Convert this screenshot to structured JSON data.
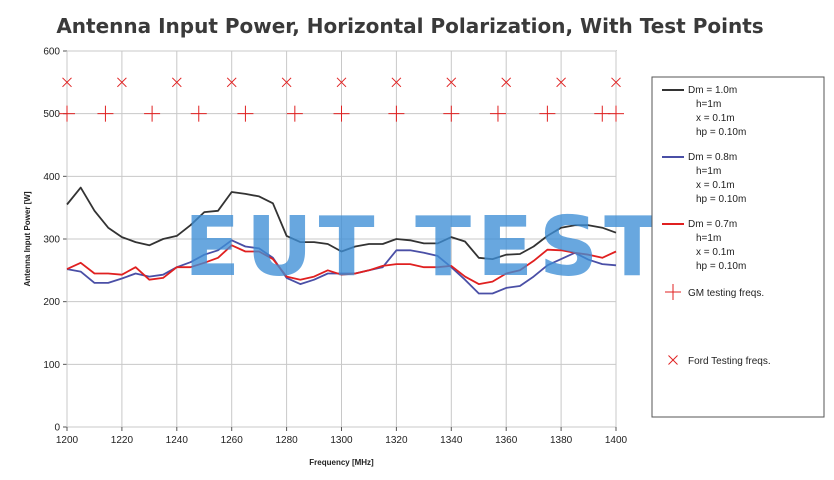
{
  "watermark": "EUT TEST",
  "chart_data": {
    "type": "line",
    "title": "Antenna Input Power, Horizontal Polarization, With Test Points",
    "xlabel": "Frequency [MHz]",
    "ylabel": "Antenna Input Power [W]",
    "xlim": [
      1200,
      1400
    ],
    "ylim": [
      0,
      600
    ],
    "x_ticks": [
      1200,
      1220,
      1240,
      1260,
      1280,
      1300,
      1320,
      1340,
      1360,
      1380,
      1400
    ],
    "y_ticks": [
      0,
      100,
      200,
      300,
      400,
      500,
      600
    ],
    "grid": true,
    "legend_position": "right",
    "series": [
      {
        "name": "Dm = 1.0m\nh=1m\nx = 0.1m\nhp = 0.10m",
        "color": "#333333",
        "points": [
          [
            1200,
            355
          ],
          [
            1205,
            382
          ],
          [
            1210,
            345
          ],
          [
            1215,
            318
          ],
          [
            1220,
            303
          ],
          [
            1225,
            295
          ],
          [
            1230,
            290
          ],
          [
            1235,
            300
          ],
          [
            1240,
            305
          ],
          [
            1245,
            322
          ],
          [
            1250,
            343
          ],
          [
            1255,
            345
          ],
          [
            1260,
            375
          ],
          [
            1265,
            372
          ],
          [
            1270,
            368
          ],
          [
            1275,
            357
          ],
          [
            1280,
            305
          ],
          [
            1285,
            295
          ],
          [
            1290,
            295
          ],
          [
            1295,
            292
          ],
          [
            1300,
            280
          ],
          [
            1305,
            288
          ],
          [
            1310,
            292
          ],
          [
            1315,
            292
          ],
          [
            1320,
            300
          ],
          [
            1325,
            298
          ],
          [
            1330,
            293
          ],
          [
            1335,
            293
          ],
          [
            1340,
            303
          ],
          [
            1345,
            296
          ],
          [
            1350,
            270
          ],
          [
            1355,
            268
          ],
          [
            1360,
            275
          ],
          [
            1365,
            276
          ],
          [
            1370,
            288
          ],
          [
            1375,
            305
          ],
          [
            1380,
            318
          ],
          [
            1385,
            322
          ],
          [
            1390,
            322
          ],
          [
            1395,
            318
          ],
          [
            1400,
            310
          ]
        ]
      },
      {
        "name": "Dm = 0.8m\nh=1m\nx = 0.1m\nhp = 0.10m",
        "color": "#4a4fa6",
        "points": [
          [
            1200,
            252
          ],
          [
            1205,
            248
          ],
          [
            1210,
            230
          ],
          [
            1215,
            230
          ],
          [
            1220,
            237
          ],
          [
            1225,
            245
          ],
          [
            1230,
            240
          ],
          [
            1235,
            243
          ],
          [
            1240,
            255
          ],
          [
            1245,
            263
          ],
          [
            1250,
            275
          ],
          [
            1255,
            282
          ],
          [
            1260,
            298
          ],
          [
            1265,
            288
          ],
          [
            1270,
            285
          ],
          [
            1275,
            270
          ],
          [
            1280,
            238
          ],
          [
            1285,
            228
          ],
          [
            1290,
            235
          ],
          [
            1295,
            245
          ],
          [
            1300,
            245
          ],
          [
            1305,
            245
          ],
          [
            1310,
            250
          ],
          [
            1315,
            255
          ],
          [
            1320,
            282
          ],
          [
            1325,
            282
          ],
          [
            1330,
            278
          ],
          [
            1335,
            273
          ],
          [
            1340,
            255
          ],
          [
            1345,
            235
          ],
          [
            1350,
            213
          ],
          [
            1355,
            213
          ],
          [
            1360,
            222
          ],
          [
            1365,
            225
          ],
          [
            1370,
            240
          ],
          [
            1375,
            258
          ],
          [
            1380,
            268
          ],
          [
            1385,
            278
          ],
          [
            1390,
            267
          ],
          [
            1395,
            260
          ],
          [
            1400,
            258
          ]
        ]
      },
      {
        "name": "Dm = 0.7m\nh=1m\nx = 0.1m\nhp = 0.10m",
        "color": "#e02020",
        "points": [
          [
            1200,
            252
          ],
          [
            1205,
            262
          ],
          [
            1210,
            245
          ],
          [
            1215,
            245
          ],
          [
            1220,
            243
          ],
          [
            1225,
            255
          ],
          [
            1230,
            235
          ],
          [
            1235,
            238
          ],
          [
            1240,
            255
          ],
          [
            1245,
            255
          ],
          [
            1250,
            262
          ],
          [
            1255,
            270
          ],
          [
            1260,
            290
          ],
          [
            1265,
            280
          ],
          [
            1270,
            280
          ],
          [
            1275,
            268
          ],
          [
            1280,
            240
          ],
          [
            1285,
            235
          ],
          [
            1290,
            240
          ],
          [
            1295,
            250
          ],
          [
            1300,
            243
          ],
          [
            1305,
            245
          ],
          [
            1310,
            250
          ],
          [
            1315,
            257
          ],
          [
            1320,
            260
          ],
          [
            1325,
            260
          ],
          [
            1330,
            255
          ],
          [
            1335,
            255
          ],
          [
            1340,
            257
          ],
          [
            1345,
            240
          ],
          [
            1350,
            228
          ],
          [
            1355,
            232
          ],
          [
            1360,
            245
          ],
          [
            1365,
            250
          ],
          [
            1370,
            265
          ],
          [
            1375,
            283
          ],
          [
            1380,
            282
          ],
          [
            1385,
            278
          ],
          [
            1390,
            275
          ],
          [
            1395,
            270
          ],
          [
            1400,
            280
          ]
        ]
      }
    ],
    "markers": [
      {
        "name": "GM testing freqs.",
        "symbol": "plus",
        "color": "#e02020",
        "y": 500,
        "x": [
          1200,
          1214,
          1231,
          1248,
          1265,
          1283,
          1300,
          1320,
          1340,
          1357,
          1375,
          1395,
          1400
        ]
      },
      {
        "name": "Ford Testing freqs.",
        "symbol": "cross",
        "color": "#e02020",
        "y": 550,
        "x": [
          1200,
          1220,
          1240,
          1260,
          1280,
          1300,
          1320,
          1340,
          1360,
          1380,
          1400
        ]
      }
    ]
  }
}
